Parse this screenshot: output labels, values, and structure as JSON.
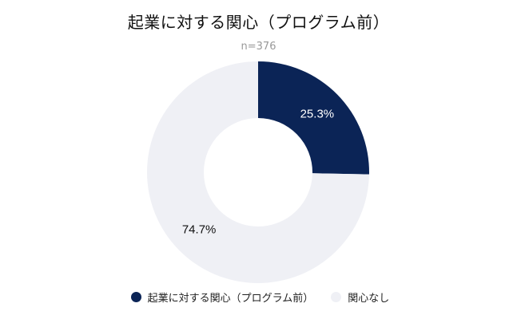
{
  "chart_data": {
    "type": "pie",
    "donut": true,
    "title": "起業に対する関心（プログラム前）",
    "subtitle": "n=376",
    "slices": [
      {
        "name": "起業に対する関心（プログラム前）",
        "value": 25.3,
        "label": "25.3%",
        "color": "#0b2456",
        "label_color": "#ffffff"
      },
      {
        "name": "関心なし",
        "value": 74.7,
        "label": "74.7%",
        "color": "#eff0f5",
        "label_color": "#111111"
      }
    ],
    "legend_position": "bottom",
    "start_angle": "top",
    "direction": "clockwise"
  }
}
